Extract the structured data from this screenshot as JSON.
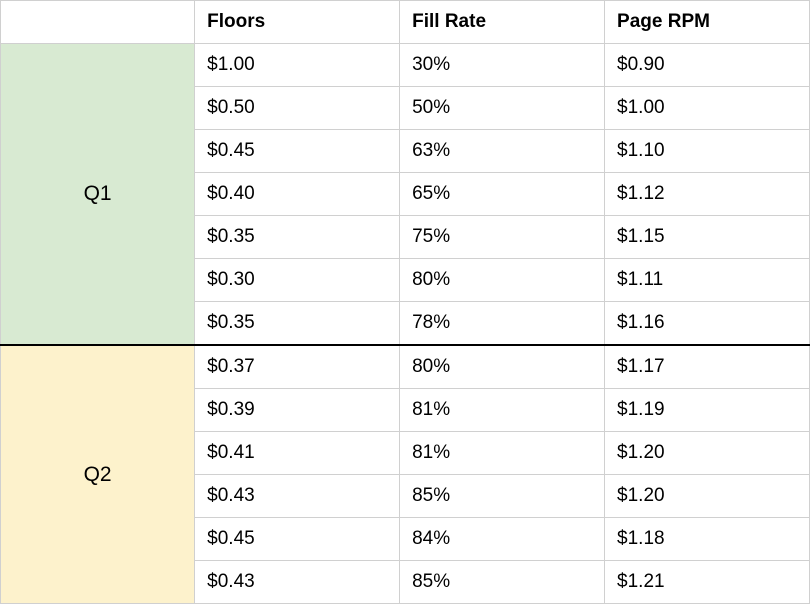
{
  "table": {
    "columns": [
      "Floors",
      "Fill Rate",
      "Page RPM"
    ],
    "quarter_column_bg": {
      "Q1": "#d8ead2",
      "Q2": "#fdf2cc"
    },
    "groups": [
      {
        "label": "Q1",
        "rows": [
          [
            "$1.00",
            "30%",
            "$0.90"
          ],
          [
            "$0.50",
            "50%",
            "$1.00"
          ],
          [
            "$0.45",
            "63%",
            "$1.10"
          ],
          [
            "$0.40",
            "65%",
            "$1.12"
          ],
          [
            "$0.35",
            "75%",
            "$1.15"
          ],
          [
            "$0.30",
            "80%",
            "$1.11"
          ],
          [
            "$0.35",
            "78%",
            "$1.16"
          ]
        ]
      },
      {
        "label": "Q2",
        "rows": [
          [
            "$0.37",
            "80%",
            "$1.17"
          ],
          [
            "$0.39",
            "81%",
            "$1.19"
          ],
          [
            "$0.41",
            "81%",
            "$1.20"
          ],
          [
            "$0.43",
            "85%",
            "$1.20"
          ],
          [
            "$0.45",
            "84%",
            "$1.18"
          ],
          [
            "$0.43",
            "85%",
            "$1.21"
          ]
        ]
      }
    ],
    "border_color": "#d0d0d0",
    "group_divider_color": "#000000",
    "font_family": "Arial",
    "header_font_weight": "bold",
    "cell_font_size": 19,
    "quarter_font_size": 21
  }
}
